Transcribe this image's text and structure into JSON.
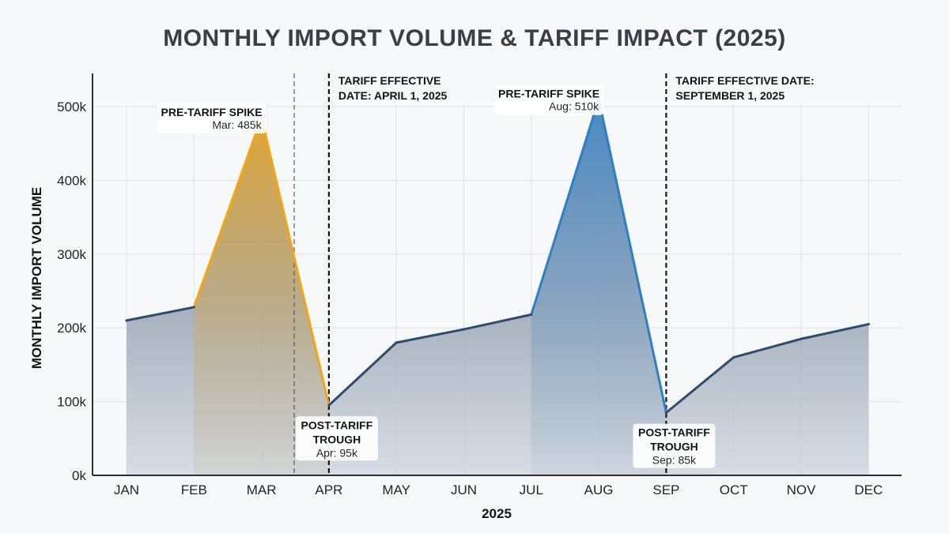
{
  "chart_data": {
    "type": "line",
    "title": "MONTHLY IMPORT VOLUME & TARIFF IMPACT (2025)",
    "xlabel": "2025",
    "ylabel": "MONTHLY IMPORT VOLUME",
    "categories": [
      "JAN",
      "FEB",
      "MAR",
      "APR",
      "MAY",
      "JUN",
      "JUL",
      "AUG",
      "SEP",
      "OCT",
      "NOV",
      "DEC"
    ],
    "y_ticks": [
      "0k",
      "100k",
      "200k",
      "300k",
      "400k",
      "500k"
    ],
    "y_tick_values": [
      0,
      100000,
      200000,
      300000,
      400000,
      500000
    ],
    "ylim": [
      0,
      545000
    ],
    "grid": true,
    "area_fill": true,
    "series": [
      {
        "values": [
          210000,
          228000,
          485000,
          95000,
          180000,
          198000,
          218000,
          510000,
          85000,
          160000,
          185000,
          205000
        ]
      }
    ],
    "colors": {
      "line": "#2f4b6e",
      "spike_line_1": "#f2a516",
      "spike_line_2": "#2f7fc1",
      "area_bottom": "#ccd3dc",
      "area_top": "#8b97a8",
      "grid": "#dde1e6",
      "axis": "#2b2f36"
    },
    "annotations": [
      {
        "title": "PRE-TARIFF SPIKE",
        "sub": "Mar: 485k",
        "month": "MAR",
        "value": 485000
      },
      {
        "title": "POST-TARIFF TROUGH",
        "title_lines": [
          "POST-TARIFF",
          "TROUGH"
        ],
        "sub": "Apr: 95k",
        "month": "APR",
        "value": 95000
      },
      {
        "title": "PRE-TARIFF SPIKE",
        "sub": "Aug: 510k",
        "month": "AUG",
        "value": 510000
      },
      {
        "title": "POST-TARIFF TROUGH",
        "title_lines": [
          "POST-TARIFF",
          "TROUGH"
        ],
        "sub": "Sep: 85k",
        "month": "SEP",
        "value": 85000
      }
    ],
    "tariff_lines": [
      {
        "label_lines": [
          "TARIFF EFFECTIVE",
          "DATE: APRIL 1, 2025"
        ],
        "month": "APR"
      },
      {
        "label_lines": [
          "TARIFF EFFECTIVE DATE:",
          "SEPTEMBER 1, 2025"
        ],
        "month": "SEP"
      }
    ],
    "reference_line_month_position": 3.5
  }
}
